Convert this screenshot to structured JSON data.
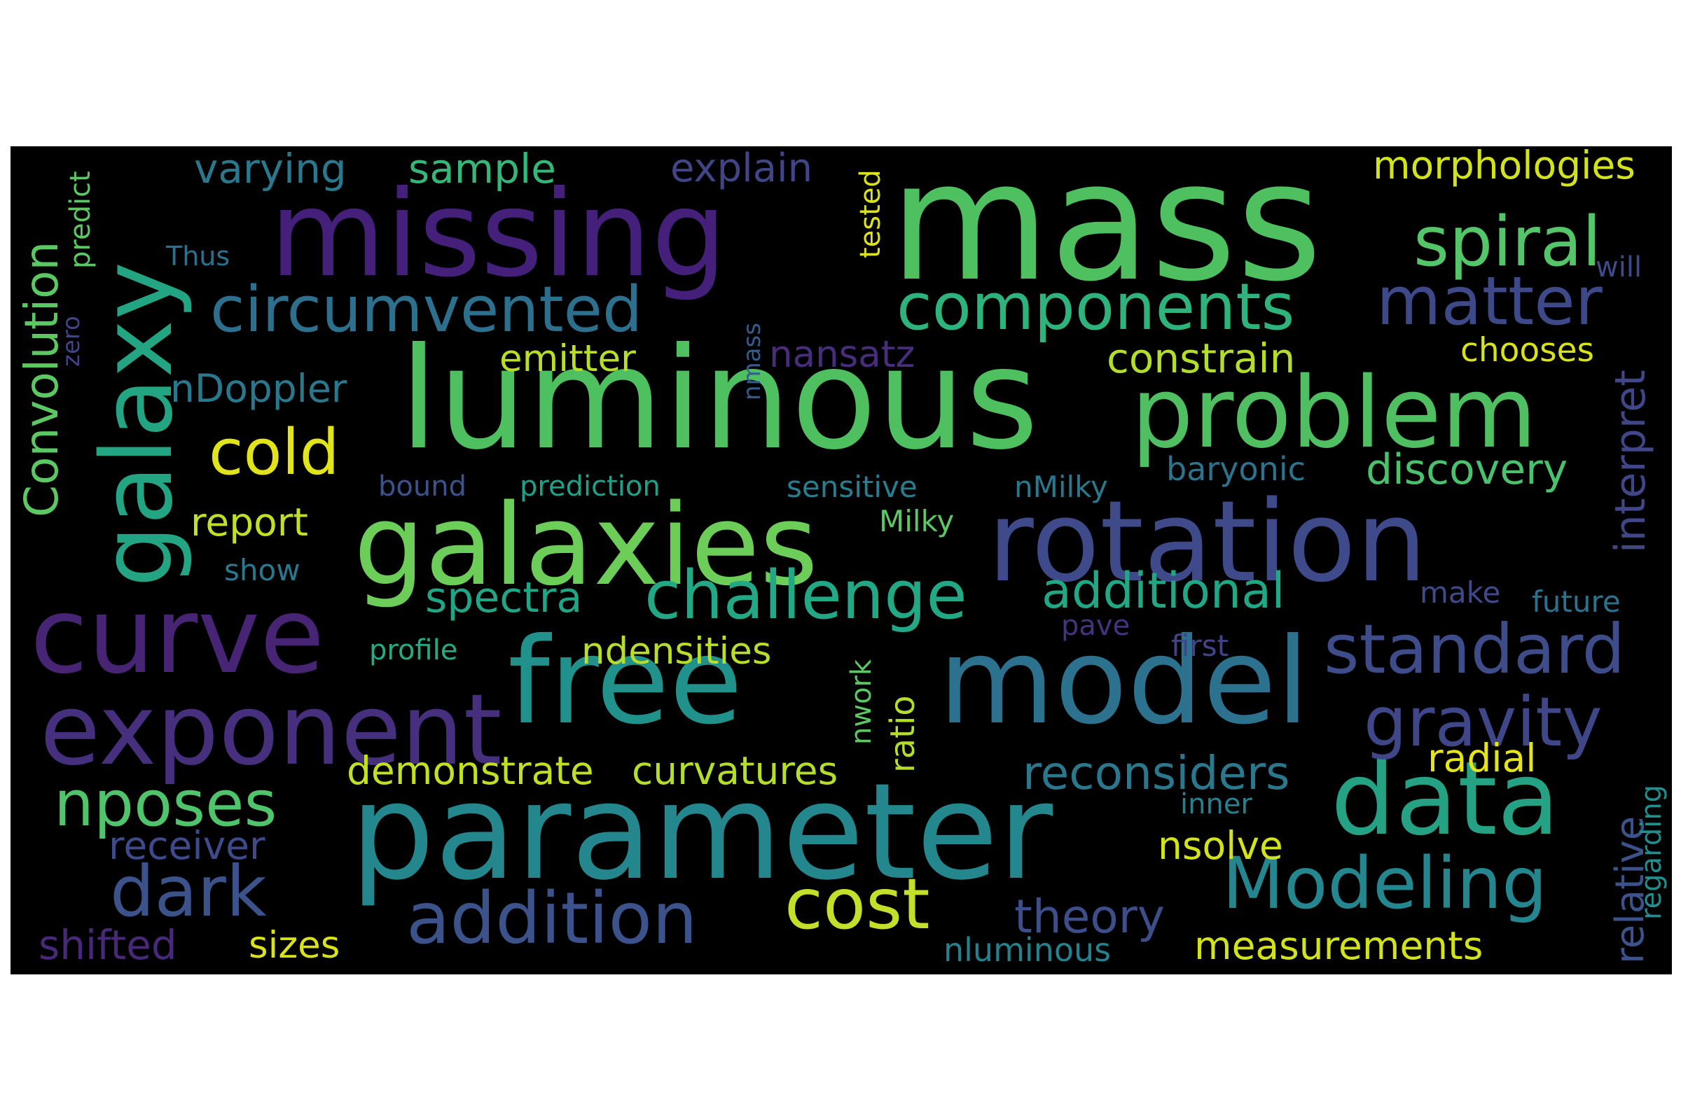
{
  "words": [
    {
      "text": "mass",
      "color": "#4fc05f"
    },
    {
      "text": "missing",
      "color": "#45207a"
    },
    {
      "text": "luminous",
      "color": "#4fc05f"
    },
    {
      "text": "problem",
      "color": "#4fbf61"
    },
    {
      "text": "galaxy",
      "color": "#23a483"
    },
    {
      "text": "galaxies",
      "color": "#6ccd59"
    },
    {
      "text": "rotation",
      "color": "#3f4a8a"
    },
    {
      "text": "curve",
      "color": "#482475"
    },
    {
      "text": "free",
      "color": "#21918c"
    },
    {
      "text": "model",
      "color": "#2c728e"
    },
    {
      "text": "exponent",
      "color": "#46307e"
    },
    {
      "text": "parameter",
      "color": "#24878e"
    },
    {
      "text": "data",
      "color": "#25a284"
    },
    {
      "text": "Modeling",
      "color": "#24868e"
    },
    {
      "text": "addition",
      "color": "#3b528b"
    },
    {
      "text": "cost",
      "color": "#c3df2a"
    },
    {
      "text": "dark",
      "color": "#3b528b"
    },
    {
      "text": "components",
      "color": "#2eb37c"
    },
    {
      "text": "spiral",
      "color": "#54c568"
    },
    {
      "text": "matter",
      "color": "#3e4989"
    },
    {
      "text": "circumvented",
      "color": "#2d708e"
    },
    {
      "text": "standard",
      "color": "#3e4c8a"
    },
    {
      "text": "gravity",
      "color": "#3f4788"
    },
    {
      "text": "challenge",
      "color": "#22a884"
    },
    {
      "text": "cold",
      "color": "#e1e418"
    },
    {
      "text": "nposes",
      "color": "#50c46a"
    },
    {
      "text": "theory",
      "color": "#3d4e8a"
    },
    {
      "text": "Convolution",
      "color": "#5cc863"
    },
    {
      "text": "varying",
      "color": "#2a788e"
    },
    {
      "text": "sample",
      "color": "#35b779"
    },
    {
      "text": "explain",
      "color": "#414487"
    },
    {
      "text": "morphologies",
      "color": "#d2e21b"
    },
    {
      "text": "emitter",
      "color": "#b8de29"
    },
    {
      "text": "nansatz",
      "color": "#472d7b"
    },
    {
      "text": "constrain",
      "color": "#b5de2b"
    },
    {
      "text": "chooses",
      "color": "#d8e219"
    },
    {
      "text": "nDoppler",
      "color": "#2a788e"
    },
    {
      "text": "discovery",
      "color": "#4ac16d"
    },
    {
      "text": "baryonic",
      "color": "#2c738e"
    },
    {
      "text": "interpret",
      "color": "#404688"
    },
    {
      "text": "report",
      "color": "#c0df25"
    },
    {
      "text": "additional",
      "color": "#22a785"
    },
    {
      "text": "spectra",
      "color": "#21a685"
    },
    {
      "text": "demonstrate",
      "color": "#c2df23"
    },
    {
      "text": "curvatures",
      "color": "#b5de2b"
    },
    {
      "text": "reconsiders",
      "color": "#2a788e"
    },
    {
      "text": "radial",
      "color": "#e5e419"
    },
    {
      "text": "ndensities",
      "color": "#b8de29"
    },
    {
      "text": "receiver",
      "color": "#3e4a89"
    },
    {
      "text": "nsolve",
      "color": "#d2e21b"
    },
    {
      "text": "measurements",
      "color": "#d2e21b"
    },
    {
      "text": "sizes",
      "color": "#dae319"
    },
    {
      "text": "shifted",
      "color": "#482979"
    },
    {
      "text": "nluminous",
      "color": "#26818e"
    },
    {
      "text": "relative",
      "color": "#3b528b"
    },
    {
      "text": "regarding",
      "color": "#228d8d"
    },
    {
      "text": "ratio",
      "color": "#b5de2b"
    },
    {
      "text": "nwork",
      "color": "#5cc863"
    },
    {
      "text": "tested",
      "color": "#dde318"
    },
    {
      "text": "nmass",
      "color": "#365c8d"
    },
    {
      "text": "predict",
      "color": "#5cc863"
    },
    {
      "text": "zero",
      "color": "#414487"
    },
    {
      "text": "Thus",
      "color": "#2d708e"
    },
    {
      "text": "will",
      "color": "#3e4a89"
    },
    {
      "text": "bound",
      "color": "#3b528b"
    },
    {
      "text": "prediction",
      "color": "#1fa088"
    },
    {
      "text": "sensitive",
      "color": "#287d8e"
    },
    {
      "text": "nMilky",
      "color": "#2a788e"
    },
    {
      "text": "Milky",
      "color": "#5cc863"
    },
    {
      "text": "show",
      "color": "#2a788e"
    },
    {
      "text": "profile",
      "color": "#25ab82"
    },
    {
      "text": "first",
      "color": "#414487"
    },
    {
      "text": "pave",
      "color": "#46327e"
    },
    {
      "text": "make",
      "color": "#3e4a89"
    },
    {
      "text": "future",
      "color": "#2c728e"
    },
    {
      "text": "inner",
      "color": "#27808e"
    }
  ]
}
